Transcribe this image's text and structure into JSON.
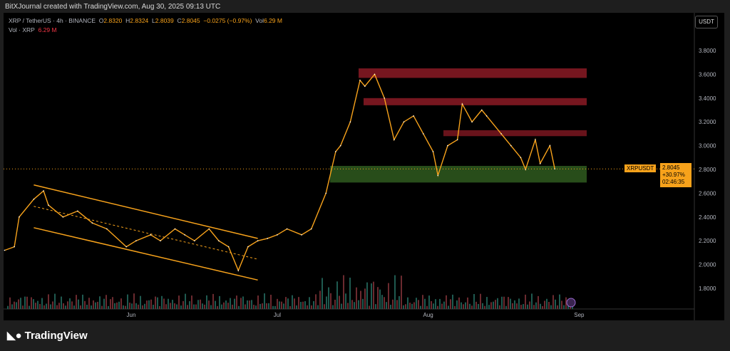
{
  "header": {
    "credit": "BitXJournal created with TradingView.com, Aug 30, 2025 09:13 UTC"
  },
  "legend": {
    "symbol": "XRP / TetherUS · 4h · BINANCE",
    "o_label": "O",
    "o": "2.8320",
    "h_label": "H",
    "h": "2.8324",
    "l_label": "L",
    "l": "2.8039",
    "c_label": "C",
    "c": "2.8045",
    "change": "−0.0275 (−0.97%)",
    "vol_label": "Vol",
    "vol": "6.29 M",
    "vol_row_label": "Vol · XRP",
    "vol_row_value": "6.29 M"
  },
  "currency": "USDT",
  "price_tag": {
    "symbol": "XRPUSDT",
    "price": "2.8045",
    "change": "+30.97%",
    "countdown": "02:46:35"
  },
  "logo": "TradingView",
  "colors": {
    "price": "#f7a21b",
    "bg": "#000000",
    "supply": "#8b1a24",
    "demand": "#2f5a1f"
  },
  "chart_data": {
    "type": "line",
    "title": "XRP / TetherUS · 4h · BINANCE",
    "ylabel": "USDT",
    "ylim": [
      1.7,
      3.9
    ],
    "y_ticks": [
      "3.8000",
      "3.6000",
      "3.4000",
      "3.2000",
      "3.0000",
      "2.8000",
      "2.6000",
      "2.4000",
      "2.2000",
      "2.0000",
      "1.8000"
    ],
    "x_ticks": [
      {
        "label": "Jun",
        "day": 0
      },
      {
        "label": "Jul",
        "day": 30
      },
      {
        "label": "Aug",
        "day": 61
      },
      {
        "label": "Sep",
        "day": 92
      }
    ],
    "series": [
      {
        "name": "XRPUSDT",
        "day": [
          -26,
          -24,
          -23,
          -20,
          -18,
          -17,
          -14,
          -11,
          -8,
          -5,
          -1,
          1,
          4,
          6,
          9,
          11,
          13,
          16,
          18,
          20,
          22,
          24,
          26,
          28,
          30,
          32,
          35,
          37,
          40,
          42,
          43,
          45,
          47,
          48,
          50,
          52,
          54,
          56,
          58,
          60,
          62,
          63,
          65,
          67,
          68,
          70,
          72,
          73,
          76,
          78,
          80,
          81,
          83,
          84,
          86,
          87
        ],
        "close": [
          2.12,
          2.15,
          2.4,
          2.55,
          2.62,
          2.5,
          2.4,
          2.45,
          2.35,
          2.3,
          2.15,
          2.2,
          2.25,
          2.2,
          2.3,
          2.25,
          2.2,
          2.3,
          2.2,
          2.15,
          1.95,
          2.15,
          2.2,
          2.22,
          2.25,
          2.3,
          2.25,
          2.3,
          2.6,
          2.95,
          3.0,
          3.2,
          3.55,
          3.5,
          3.6,
          3.4,
          3.05,
          3.2,
          3.25,
          3.1,
          2.95,
          2.75,
          3.0,
          3.05,
          3.35,
          3.2,
          3.3,
          3.25,
          3.1,
          3.0,
          2.9,
          2.8,
          3.05,
          2.85,
          3.0,
          2.8045
        ]
      }
    ],
    "zones": [
      {
        "type": "supply",
        "from": 3.65,
        "to": 3.57
      },
      {
        "type": "supply",
        "from": 3.4,
        "to": 3.34
      },
      {
        "type": "supply",
        "from": 3.13,
        "to": 3.08
      },
      {
        "type": "demand",
        "from": 2.83,
        "to": 2.69
      }
    ],
    "channel": {
      "upper": [
        [
          -20,
          2.67
        ],
        [
          26,
          2.22
        ]
      ],
      "lower": [
        [
          -20,
          2.31
        ],
        [
          26,
          1.87
        ]
      ]
    }
  }
}
